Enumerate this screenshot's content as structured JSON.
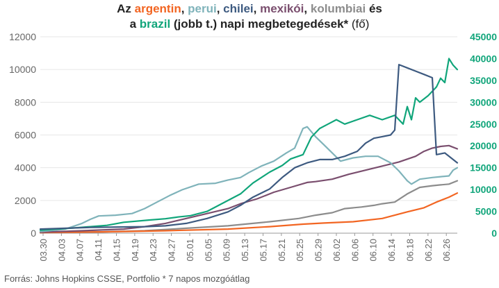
{
  "title": {
    "p1": "Az ",
    "argentin": "argentin",
    "sep1": ", ",
    "perui": "perui",
    "sep2": ", ",
    "chilei": "chilei",
    "sep3": ", ",
    "mexikoi": "mexikói",
    "sep4": ", ",
    "kolumbiai": "kolumbiai",
    "p2": " és",
    "p3": "a ",
    "brazil": "brazil",
    "p4": " (jobb t.) napi megbetegedések*",
    "p5": " (fő)"
  },
  "source": "Forrás: Johns Hopkins CSSE, Portfolio   * 7 napos mozgóátlag",
  "colors": {
    "argentin": "#f26522",
    "perui": "#7fb3ba",
    "chilei": "#3d5a80",
    "mexikoi": "#7a4e6e",
    "kolumbiai": "#8c8c8c",
    "brazil": "#10a57a",
    "axis_left": "#666666",
    "axis_right": "#10a57a",
    "grid": "#e6e6e6"
  },
  "chart_data": {
    "type": "line",
    "x_start": "03.30",
    "x_end": "06.29",
    "x_ticks": [
      "03.30",
      "04.03",
      "04.07",
      "04.11",
      "04.15",
      "04.19",
      "04.23",
      "04.27",
      "05.01",
      "05.05",
      "05.09",
      "05.13",
      "05.17",
      "05.21",
      "05.25",
      "05.29",
      "06.02",
      "06.06",
      "06.10",
      "06.14",
      "06.18",
      "06.22",
      "06.26"
    ],
    "y_left": {
      "min": 0,
      "max": 12000,
      "ticks": [
        0,
        2000,
        4000,
        6000,
        8000,
        10000,
        12000
      ]
    },
    "y_right": {
      "min": 0,
      "max": 45000,
      "ticks": [
        0,
        5000,
        10000,
        15000,
        20000,
        25000,
        30000,
        35000,
        40000,
        45000
      ]
    },
    "grid": "horizontal",
    "series": [
      {
        "name": "argentin",
        "axis": "left",
        "color": "#f26522",
        "points": [
          [
            0,
            40
          ],
          [
            15,
            80
          ],
          [
            30,
            150
          ],
          [
            45,
            250
          ],
          [
            55,
            400
          ],
          [
            63,
            550
          ],
          [
            68,
            620
          ],
          [
            75,
            700
          ],
          [
            82,
            900
          ],
          [
            88,
            1300
          ],
          [
            92,
            1550
          ],
          [
            95,
            1900
          ],
          [
            98,
            2200
          ],
          [
            100,
            2450
          ]
        ]
      },
      {
        "name": "perui",
        "axis": "left",
        "color": "#7fb3ba",
        "points": [
          [
            0,
            100
          ],
          [
            6,
            250
          ],
          [
            10,
            600
          ],
          [
            12,
            850
          ],
          [
            14,
            1050
          ],
          [
            18,
            1100
          ],
          [
            22,
            1200
          ],
          [
            25,
            1500
          ],
          [
            28,
            1900
          ],
          [
            31,
            2300
          ],
          [
            34,
            2650
          ],
          [
            38,
            3000
          ],
          [
            42,
            3050
          ],
          [
            45,
            3250
          ],
          [
            48,
            3400
          ],
          [
            50,
            3700
          ],
          [
            53,
            4100
          ],
          [
            56,
            4400
          ],
          [
            59,
            4900
          ],
          [
            61,
            5200
          ],
          [
            62,
            5800
          ],
          [
            63,
            6400
          ],
          [
            64,
            6500
          ],
          [
            66,
            5900
          ],
          [
            68,
            5400
          ],
          [
            72,
            4400
          ],
          [
            75,
            4600
          ],
          [
            78,
            4700
          ],
          [
            81,
            4700
          ],
          [
            84,
            4300
          ],
          [
            86,
            3800
          ],
          [
            88,
            3200
          ],
          [
            89,
            3000
          ],
          [
            91,
            3300
          ],
          [
            94,
            3400
          ],
          [
            96,
            3450
          ],
          [
            98,
            3500
          ],
          [
            99,
            3850
          ],
          [
            100,
            4000
          ]
        ]
      },
      {
        "name": "chilei",
        "axis": "left",
        "color": "#3d5a80",
        "points": [
          [
            0,
            250
          ],
          [
            12,
            350
          ],
          [
            25,
            400
          ],
          [
            30,
            450
          ],
          [
            35,
            600
          ],
          [
            40,
            900
          ],
          [
            45,
            1300
          ],
          [
            48,
            1700
          ],
          [
            51,
            2200
          ],
          [
            55,
            2700
          ],
          [
            58,
            3400
          ],
          [
            61,
            4000
          ],
          [
            64,
            4300
          ],
          [
            67,
            4500
          ],
          [
            70,
            4500
          ],
          [
            73,
            4700
          ],
          [
            76,
            5000
          ],
          [
            78,
            5500
          ],
          [
            80,
            5800
          ],
          [
            82,
            5900
          ],
          [
            84,
            6000
          ],
          [
            85,
            6300
          ],
          [
            86,
            10300
          ],
          [
            88,
            10100
          ],
          [
            90,
            9900
          ],
          [
            92,
            9700
          ],
          [
            94,
            9500
          ],
          [
            95,
            4800
          ],
          [
            97,
            4900
          ],
          [
            99,
            4500
          ],
          [
            100,
            4300
          ]
        ]
      },
      {
        "name": "mexikoi",
        "axis": "left",
        "color": "#7a4e6e",
        "points": [
          [
            0,
            60
          ],
          [
            10,
            150
          ],
          [
            20,
            250
          ],
          [
            25,
            400
          ],
          [
            30,
            600
          ],
          [
            35,
            900
          ],
          [
            40,
            1200
          ],
          [
            45,
            1500
          ],
          [
            48,
            1800
          ],
          [
            52,
            2100
          ],
          [
            56,
            2500
          ],
          [
            60,
            2800
          ],
          [
            64,
            3100
          ],
          [
            66,
            3150
          ],
          [
            70,
            3300
          ],
          [
            74,
            3600
          ],
          [
            78,
            3850
          ],
          [
            82,
            4100
          ],
          [
            86,
            4350
          ],
          [
            90,
            4700
          ],
          [
            92,
            5000
          ],
          [
            94,
            5200
          ],
          [
            96,
            5300
          ],
          [
            98,
            5350
          ],
          [
            100,
            5150
          ]
        ]
      },
      {
        "name": "kolumbiai",
        "axis": "left",
        "color": "#8c8c8c",
        "points": [
          [
            0,
            20
          ],
          [
            15,
            80
          ],
          [
            25,
            150
          ],
          [
            35,
            300
          ],
          [
            45,
            450
          ],
          [
            55,
            700
          ],
          [
            62,
            900
          ],
          [
            66,
            1100
          ],
          [
            70,
            1250
          ],
          [
            73,
            1500
          ],
          [
            77,
            1600
          ],
          [
            80,
            1700
          ],
          [
            82,
            1800
          ],
          [
            85,
            1900
          ],
          [
            88,
            2400
          ],
          [
            91,
            2800
          ],
          [
            94,
            2900
          ],
          [
            96,
            2950
          ],
          [
            98,
            3000
          ],
          [
            100,
            3200
          ]
        ]
      },
      {
        "name": "brazil",
        "axis": "right",
        "color": "#10a57a",
        "points": [
          [
            0,
            700
          ],
          [
            8,
            1200
          ],
          [
            16,
            1800
          ],
          [
            20,
            2500
          ],
          [
            26,
            3000
          ],
          [
            30,
            3300
          ],
          [
            33,
            3700
          ],
          [
            36,
            4000
          ],
          [
            40,
            5000
          ],
          [
            44,
            7000
          ],
          [
            48,
            9000
          ],
          [
            51,
            11500
          ],
          [
            55,
            14000
          ],
          [
            58,
            15500
          ],
          [
            60,
            17000
          ],
          [
            63,
            18000
          ],
          [
            65,
            22000
          ],
          [
            67,
            24000
          ],
          [
            69,
            25000
          ],
          [
            71,
            26000
          ],
          [
            73,
            25000
          ],
          [
            76,
            26000
          ],
          [
            79,
            27000
          ],
          [
            82,
            26000
          ],
          [
            85,
            27000
          ],
          [
            86,
            26000
          ],
          [
            87,
            25000
          ],
          [
            88,
            29000
          ],
          [
            89,
            26000
          ],
          [
            90,
            31000
          ],
          [
            91,
            30000
          ],
          [
            93,
            31500
          ],
          [
            95,
            33500
          ],
          [
            96,
            35500
          ],
          [
            97,
            34500
          ],
          [
            98,
            40000
          ],
          [
            99,
            38500
          ],
          [
            100,
            37500
          ]
        ]
      }
    ]
  }
}
